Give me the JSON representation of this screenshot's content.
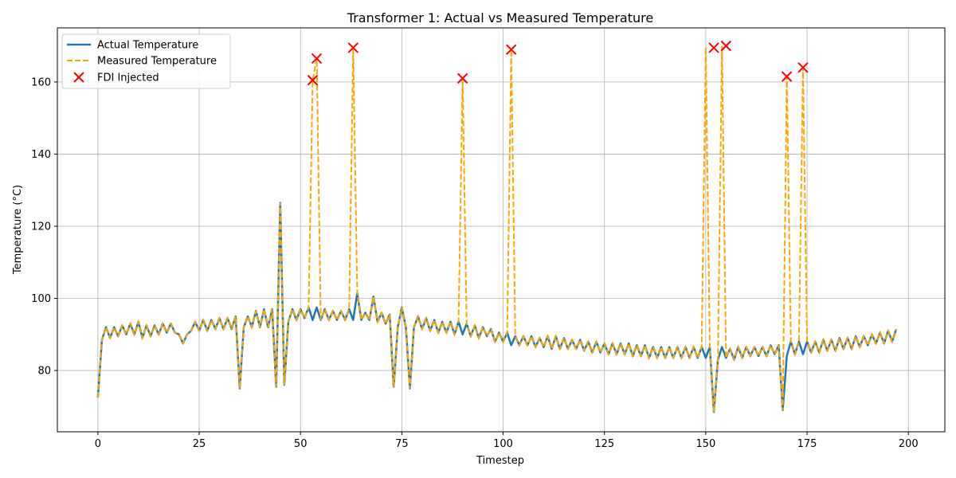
{
  "chart_data": {
    "type": "line",
    "title": "Transformer 1: Actual vs Measured Temperature",
    "xlabel": "Timestep",
    "ylabel": "Temperature (°C)",
    "xlim": [
      -10,
      209
    ],
    "ylim": [
      63,
      175
    ],
    "xticks": [
      0,
      25,
      50,
      75,
      100,
      125,
      150,
      175,
      200
    ],
    "yticks": [
      80,
      100,
      120,
      140,
      160
    ],
    "grid": true,
    "legend_position": "top-left",
    "series": [
      {
        "name": "Actual Temperature",
        "style": "solid",
        "color": "#1f77b4",
        "x_start": 0,
        "values": [
          72.5,
          88.5,
          92,
          89,
          92,
          89.5,
          92.5,
          90,
          93,
          90,
          93.5,
          89,
          92.5,
          89.5,
          92.5,
          90,
          93,
          90.5,
          93,
          90.5,
          90,
          87.5,
          90,
          91,
          93.5,
          91,
          94,
          91,
          94,
          91.5,
          94.5,
          91.5,
          94.5,
          91.5,
          95,
          75,
          92,
          95,
          92,
          96.5,
          92,
          97,
          92,
          97,
          75.5,
          126.5,
          76,
          93.5,
          97,
          94,
          97,
          94.5,
          97.5,
          94,
          97.5,
          94,
          97,
          94,
          96.5,
          94,
          96.5,
          94,
          97,
          94,
          101.5,
          94,
          96,
          94,
          100.5,
          93.5,
          96,
          93,
          95.5,
          75.5,
          92,
          97.5,
          92,
          75,
          92,
          95,
          91.5,
          94.5,
          91,
          94,
          90.5,
          93.5,
          90.5,
          93.5,
          90,
          93.5,
          90,
          93,
          89.5,
          92.5,
          89,
          92,
          89.5,
          91.5,
          88,
          90.5,
          88,
          90.5,
          87,
          89.5,
          87,
          89.5,
          87,
          89.5,
          86.5,
          89,
          86.5,
          89.5,
          86,
          89.5,
          86,
          89,
          86,
          88.5,
          86,
          88.5,
          85.5,
          88,
          85,
          88,
          85,
          87.5,
          84.5,
          87.5,
          84.5,
          87.5,
          84.5,
          87.5,
          84,
          87,
          84,
          87,
          83.5,
          86.5,
          83.5,
          86.5,
          83.5,
          86.5,
          83.5,
          86.5,
          83.5,
          86.5,
          83.5,
          86.5,
          83.5,
          86.5,
          83.5,
          86.5,
          68.5,
          83,
          86.5,
          83.5,
          86,
          83,
          86.5,
          83.5,
          86.5,
          84,
          86.5,
          84,
          86.5,
          84,
          87,
          84.5,
          87,
          69,
          84,
          88,
          84.5,
          88,
          84.5,
          88,
          85,
          88,
          85,
          88.5,
          85.5,
          88.5,
          85.5,
          89,
          86,
          89,
          86,
          89.5,
          86.5,
          89.5,
          87,
          90,
          87.5,
          90.5,
          87.5,
          91,
          88,
          91.5
        ]
      },
      {
        "name": "Measured Temperature",
        "style": "dashed",
        "color": "#ffa500",
        "x_start": 0,
        "values": [
          72.5,
          88.5,
          92,
          89,
          92,
          89.5,
          92.5,
          90,
          93,
          90,
          93.5,
          89,
          92.5,
          89.5,
          92.5,
          90,
          93,
          90.5,
          93,
          90.5,
          90,
          87.5,
          90,
          91,
          93.5,
          91,
          94,
          91,
          94,
          91.5,
          94.5,
          91.5,
          94.5,
          91.5,
          95,
          75,
          92,
          95,
          92,
          96.5,
          92,
          97,
          92,
          97,
          75.5,
          126.5,
          76,
          93.5,
          97,
          94,
          97,
          94.5,
          97.5,
          160.5,
          166.5,
          94,
          97,
          94,
          96.5,
          94,
          96.5,
          94,
          97,
          169.5,
          101.5,
          94,
          96,
          94,
          100.5,
          93.5,
          96,
          93,
          95.5,
          75.5,
          92,
          97.5,
          92,
          75,
          92,
          95,
          91.5,
          94.5,
          91,
          94,
          90.5,
          93.5,
          90.5,
          93.5,
          90,
          93.5,
          161,
          93,
          89.5,
          92.5,
          89,
          92,
          89.5,
          91.5,
          88,
          90.5,
          88,
          90.5,
          169,
          89.5,
          87,
          89.5,
          87,
          89.5,
          86.5,
          89,
          86.5,
          89.5,
          86,
          89.5,
          86,
          89,
          86,
          88.5,
          86,
          88.5,
          85.5,
          88,
          85,
          88,
          85,
          87.5,
          84.5,
          87.5,
          84.5,
          87.5,
          84.5,
          87.5,
          84,
          87,
          84,
          87,
          83.5,
          86.5,
          83.5,
          86.5,
          83.5,
          86.5,
          83.5,
          86.5,
          83.5,
          86.5,
          83.5,
          86.5,
          83.5,
          86.5,
          169.5,
          86.5,
          68.5,
          83,
          170,
          83.5,
          86,
          83,
          86.5,
          83.5,
          86.5,
          84,
          86.5,
          84,
          86.5,
          84,
          87,
          84.5,
          87,
          69,
          161.5,
          88,
          84.5,
          88,
          164,
          88,
          85,
          88,
          85,
          88.5,
          85.5,
          88.5,
          85.5,
          89,
          86,
          89,
          86,
          89.5,
          86.5,
          89.5,
          87,
          90,
          87.5,
          90.5,
          87.5,
          91,
          88,
          91.5
        ]
      },
      {
        "name": "FDI Injected",
        "style": "marker-x",
        "color": "#ff0000",
        "points": [
          {
            "x": 53,
            "y": 160.5
          },
          {
            "x": 54,
            "y": 166.5
          },
          {
            "x": 63,
            "y": 169.5
          },
          {
            "x": 90,
            "y": 161
          },
          {
            "x": 102,
            "y": 169
          },
          {
            "x": 152,
            "y": 169.5
          },
          {
            "x": 155,
            "y": 170
          },
          {
            "x": 170,
            "y": 161.5
          },
          {
            "x": 174,
            "y": 164
          }
        ]
      }
    ]
  }
}
